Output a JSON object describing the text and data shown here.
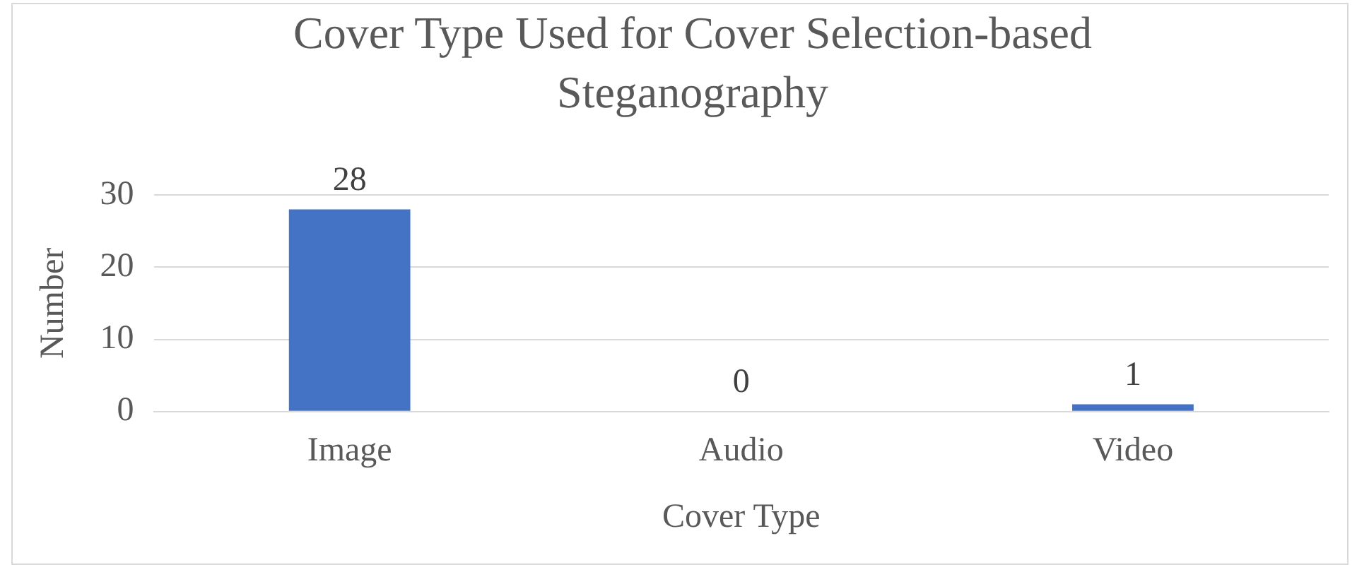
{
  "chart_data": {
    "type": "bar",
    "title": "Cover Type Used for Cover Selection-based Steganography",
    "xlabel": "Cover Type",
    "ylabel": "Number",
    "categories": [
      "Image",
      "Audio",
      "Video"
    ],
    "values": [
      28,
      0,
      1
    ],
    "color": "#4472c4",
    "ylim": [
      0,
      30
    ],
    "yticks": [
      0,
      10,
      20,
      30
    ],
    "grid": "y",
    "data_labels": true
  }
}
